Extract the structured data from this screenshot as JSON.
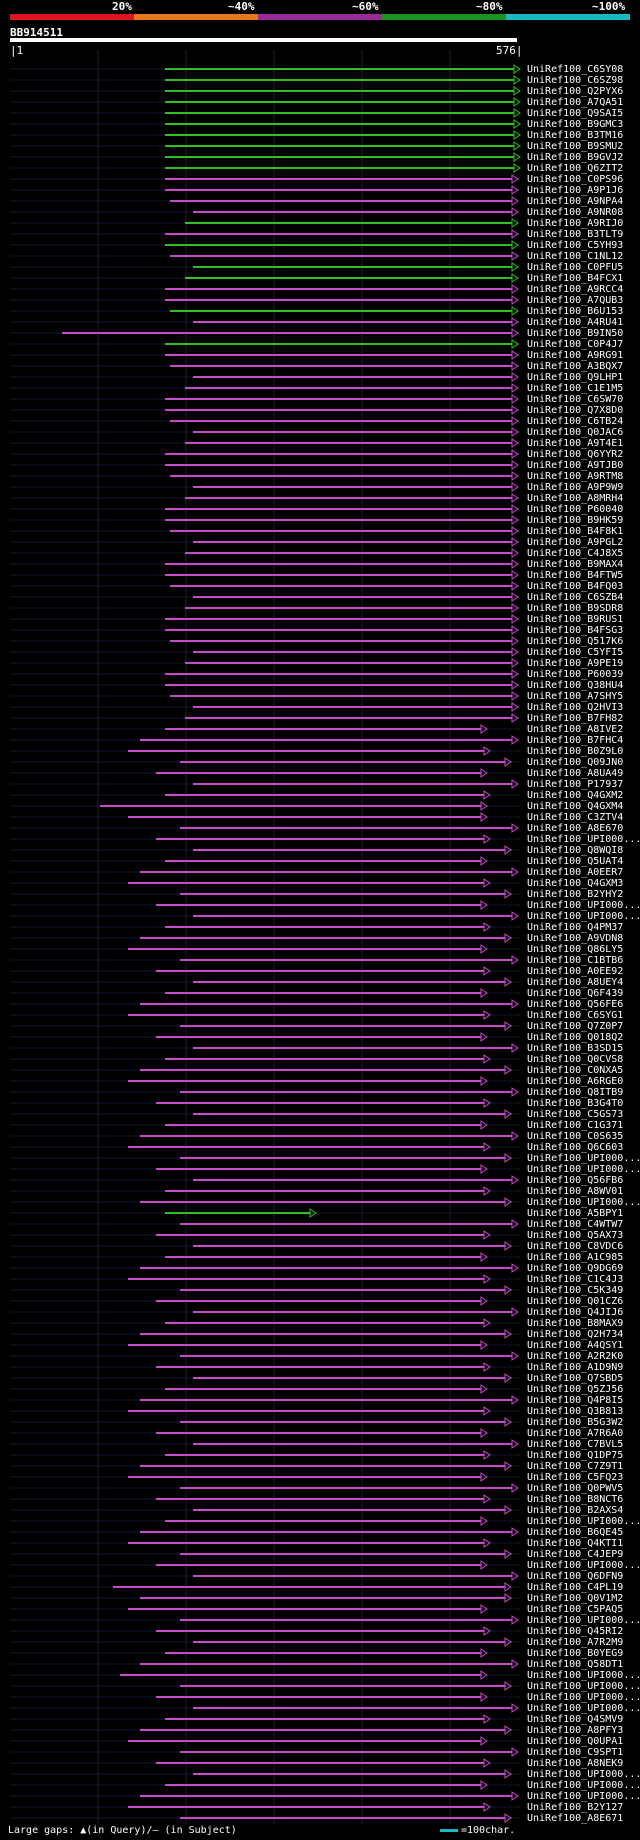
{
  "legend": {
    "labels": [
      "20%",
      "~40%",
      "~60%",
      "~80%",
      "~100%"
    ],
    "colors": [
      "#e0141e",
      "#e87818",
      "#9a2a9a",
      "#19941e",
      "#19b8c3"
    ]
  },
  "query": {
    "name": "BB914511",
    "start": "1",
    "end": "576"
  },
  "hits": [
    {
      "id": "UniRef100_C6SY08",
      "color": "green"
    },
    {
      "id": "UniRef100_C6SZ98",
      "color": "green"
    },
    {
      "id": "UniRef100_Q2PYX6",
      "color": "green"
    },
    {
      "id": "UniRef100_A7QA51",
      "color": "green"
    },
    {
      "id": "UniRef100_Q9SAI5",
      "color": "green"
    },
    {
      "id": "UniRef100_B9GMC3",
      "color": "green"
    },
    {
      "id": "UniRef100_B3TM16",
      "color": "green"
    },
    {
      "id": "UniRef100_B9SMU2",
      "color": "green"
    },
    {
      "id": "UniRef100_B9GVJ2",
      "color": "green"
    },
    {
      "id": "UniRef100_Q6ZIT2",
      "color": "green"
    },
    {
      "id": "UniRef100_C0PS96",
      "color": "magenta"
    },
    {
      "id": "UniRef100_A9P1J6",
      "color": "magenta"
    },
    {
      "id": "UniRef100_A9NPA4",
      "color": "magenta"
    },
    {
      "id": "UniRef100_A9NR08",
      "color": "magenta"
    },
    {
      "id": "UniRef100_A9RIJ0",
      "color": "green"
    },
    {
      "id": "UniRef100_B3TLT9",
      "color": "magenta"
    },
    {
      "id": "UniRef100_C5YH93",
      "color": "green"
    },
    {
      "id": "UniRef100_C1NL12",
      "color": "magenta"
    },
    {
      "id": "UniRef100_C0PFU5",
      "color": "green"
    },
    {
      "id": "UniRef100_B4FCX1",
      "color": "green"
    },
    {
      "id": "UniRef100_A9RCC4",
      "color": "magenta"
    },
    {
      "id": "UniRef100_A7QUB3",
      "color": "magenta"
    },
    {
      "id": "UniRef100_B6U153",
      "color": "green"
    },
    {
      "id": "UniRef100_A4RU41",
      "color": "magenta"
    },
    {
      "id": "UniRef100_B9IN50",
      "color": "magenta"
    },
    {
      "id": "UniRef100_C0P4J7",
      "color": "green"
    },
    {
      "id": "UniRef100_A9RG91",
      "color": "magenta"
    },
    {
      "id": "UniRef100_A3BQX7",
      "color": "magenta"
    },
    {
      "id": "UniRef100_Q9LHP1",
      "color": "magenta"
    },
    {
      "id": "UniRef100_C1E1M5",
      "color": "magenta"
    },
    {
      "id": "UniRef100_C6SW70",
      "color": "magenta"
    },
    {
      "id": "UniRef100_Q7X8D0",
      "color": "magenta"
    },
    {
      "id": "UniRef100_C6TB24",
      "color": "magenta"
    },
    {
      "id": "UniRef100_Q0JAC6",
      "color": "magenta"
    },
    {
      "id": "UniRef100_A9T4E1",
      "color": "magenta"
    },
    {
      "id": "UniRef100_Q6YYR2",
      "color": "magenta"
    },
    {
      "id": "UniRef100_A9TJB0",
      "color": "magenta"
    },
    {
      "id": "UniRef100_A9RTM8",
      "color": "magenta"
    },
    {
      "id": "UniRef100_A9P9W9",
      "color": "magenta"
    },
    {
      "id": "UniRef100_A8MRH4",
      "color": "magenta"
    },
    {
      "id": "UniRef100_P60040",
      "color": "magenta"
    },
    {
      "id": "UniRef100_B9HK59",
      "color": "magenta"
    },
    {
      "id": "UniRef100_B4F8K1",
      "color": "magenta"
    },
    {
      "id": "UniRef100_A9PGL2",
      "color": "magenta"
    },
    {
      "id": "UniRef100_C4J8X5",
      "color": "magenta"
    },
    {
      "id": "UniRef100_B9MAX4",
      "color": "magenta"
    },
    {
      "id": "UniRef100_B4FTW5",
      "color": "magenta"
    },
    {
      "id": "UniRef100_B4FQ03",
      "color": "magenta"
    },
    {
      "id": "UniRef100_C6SZB4",
      "color": "magenta"
    },
    {
      "id": "UniRef100_B9SDR8",
      "color": "magenta"
    },
    {
      "id": "UniRef100_B9RUS1",
      "color": "magenta"
    },
    {
      "id": "UniRef100_B4FSG3",
      "color": "magenta"
    },
    {
      "id": "UniRef100_Q517K6",
      "color": "magenta"
    },
    {
      "id": "UniRef100_C5YFI5",
      "color": "magenta"
    },
    {
      "id": "UniRef100_A9PE19",
      "color": "magenta"
    },
    {
      "id": "UniRef100_P60039",
      "color": "magenta"
    },
    {
      "id": "UniRef100_Q38HU4",
      "color": "magenta"
    },
    {
      "id": "UniRef100_A7SHY5",
      "color": "magenta"
    },
    {
      "id": "UniRef100_Q2HVI3",
      "color": "magenta"
    },
    {
      "id": "UniRef100_B7FH82",
      "color": "magenta"
    },
    {
      "id": "UniRef100_A8IVE2",
      "color": "magenta"
    },
    {
      "id": "UniRef100_B7FHC4",
      "color": "magenta"
    },
    {
      "id": "UniRef100_B0Z9L0",
      "color": "magenta"
    },
    {
      "id": "UniRef100_Q09JN0",
      "color": "magenta"
    },
    {
      "id": "UniRef100_A8UA49",
      "color": "magenta"
    },
    {
      "id": "UniRef100_P17937",
      "color": "magenta"
    },
    {
      "id": "UniRef100_Q4GXM2",
      "color": "magenta"
    },
    {
      "id": "UniRef100_Q4GXM4",
      "color": "magenta"
    },
    {
      "id": "UniRef100_C3ZTV4",
      "color": "magenta"
    },
    {
      "id": "UniRef100_A8E670",
      "color": "magenta"
    },
    {
      "id": "UniRef100_UPI000...",
      "color": "magenta"
    },
    {
      "id": "UniRef100_Q8WQI8",
      "color": "magenta"
    },
    {
      "id": "UniRef100_Q5UAT4",
      "color": "magenta"
    },
    {
      "id": "UniRef100_A0EER7",
      "color": "magenta"
    },
    {
      "id": "UniRef100_Q4GXM3",
      "color": "magenta"
    },
    {
      "id": "UniRef100_B2YHY2",
      "color": "magenta"
    },
    {
      "id": "UniRef100_UPI000...",
      "color": "magenta"
    },
    {
      "id": "UniRef100_UPI000...",
      "color": "magenta"
    },
    {
      "id": "UniRef100_Q4PM37",
      "color": "magenta"
    },
    {
      "id": "UniRef100_A9VDN8",
      "color": "magenta"
    },
    {
      "id": "UniRef100_Q86LY5",
      "color": "magenta"
    },
    {
      "id": "UniRef100_C1BTB6",
      "color": "magenta"
    },
    {
      "id": "UniRef100_A0EE92",
      "color": "magenta"
    },
    {
      "id": "UniRef100_A8UEY4",
      "color": "magenta"
    },
    {
      "id": "UniRef100_Q6F439",
      "color": "magenta"
    },
    {
      "id": "UniRef100_Q56FE6",
      "color": "magenta"
    },
    {
      "id": "UniRef100_C6SYG1",
      "color": "magenta"
    },
    {
      "id": "UniRef100_Q7Z0P7",
      "color": "magenta"
    },
    {
      "id": "UniRef100_Q018Q2",
      "color": "magenta"
    },
    {
      "id": "UniRef100_B3SD15",
      "color": "magenta"
    },
    {
      "id": "UniRef100_Q0CVS8",
      "color": "magenta"
    },
    {
      "id": "UniRef100_C0NXA5",
      "color": "magenta"
    },
    {
      "id": "UniRef100_A6RGE0",
      "color": "magenta"
    },
    {
      "id": "UniRef100_Q8ITB9",
      "color": "magenta"
    },
    {
      "id": "UniRef100_B3G4T0",
      "color": "magenta"
    },
    {
      "id": "UniRef100_C5GS73",
      "color": "magenta"
    },
    {
      "id": "UniRef100_C1G371",
      "color": "magenta"
    },
    {
      "id": "UniRef100_C0S635",
      "color": "magenta"
    },
    {
      "id": "UniRef100_Q6C603",
      "color": "magenta"
    },
    {
      "id": "UniRef100_UPI000...",
      "color": "magenta"
    },
    {
      "id": "UniRef100_UPI000...",
      "color": "magenta"
    },
    {
      "id": "UniRef100_Q56FB6",
      "color": "magenta"
    },
    {
      "id": "UniRef100_A8WV01",
      "color": "magenta"
    },
    {
      "id": "UniRef100_UPI000...",
      "color": "magenta"
    },
    {
      "id": "UniRef100_A5BPY1",
      "color": "green"
    },
    {
      "id": "UniRef100_C4WTW7",
      "color": "magenta"
    },
    {
      "id": "UniRef100_Q5AX73",
      "color": "magenta"
    },
    {
      "id": "UniRef100_C8VDC6",
      "color": "magenta"
    },
    {
      "id": "UniRef100_A1C985",
      "color": "magenta"
    },
    {
      "id": "UniRef100_Q9DG69",
      "color": "magenta"
    },
    {
      "id": "UniRef100_C1C4J3",
      "color": "magenta"
    },
    {
      "id": "UniRef100_C5K349",
      "color": "magenta"
    },
    {
      "id": "UniRef100_Q01CZ6",
      "color": "magenta"
    },
    {
      "id": "UniRef100_Q4JIJ6",
      "color": "magenta"
    },
    {
      "id": "UniRef100_B8MAX9",
      "color": "magenta"
    },
    {
      "id": "UniRef100_Q2H734",
      "color": "magenta"
    },
    {
      "id": "UniRef100_A4QSY1",
      "color": "magenta"
    },
    {
      "id": "UniRef100_A2R2K0",
      "color": "magenta"
    },
    {
      "id": "UniRef100_A1D9N9",
      "color": "magenta"
    },
    {
      "id": "UniRef100_Q7SBD5",
      "color": "magenta"
    },
    {
      "id": "UniRef100_Q5ZJ56",
      "color": "magenta"
    },
    {
      "id": "UniRef100_Q4P8I5",
      "color": "magenta"
    },
    {
      "id": "UniRef100_Q3B813",
      "color": "magenta"
    },
    {
      "id": "UniRef100_B5G3W2",
      "color": "magenta"
    },
    {
      "id": "UniRef100_A7R6A0",
      "color": "magenta"
    },
    {
      "id": "UniRef100_C7BVL5",
      "color": "magenta"
    },
    {
      "id": "UniRef100_Q1DP75",
      "color": "magenta"
    },
    {
      "id": "UniRef100_C7Z9T1",
      "color": "magenta"
    },
    {
      "id": "UniRef100_C5FQ23",
      "color": "magenta"
    },
    {
      "id": "UniRef100_Q0PWV5",
      "color": "magenta"
    },
    {
      "id": "UniRef100_B8NCT6",
      "color": "magenta"
    },
    {
      "id": "UniRef100_B2AXS4",
      "color": "magenta"
    },
    {
      "id": "UniRef100_UPI000...",
      "color": "magenta"
    },
    {
      "id": "UniRef100_B6QE45",
      "color": "magenta"
    },
    {
      "id": "UniRef100_Q4KTI1",
      "color": "magenta"
    },
    {
      "id": "UniRef100_C4JEP9",
      "color": "magenta"
    },
    {
      "id": "UniRef100_UPI000...",
      "color": "magenta"
    },
    {
      "id": "UniRef100_Q6DFN9",
      "color": "magenta"
    },
    {
      "id": "UniRef100_C4PL19",
      "color": "magenta"
    },
    {
      "id": "UniRef100_Q0V1M2",
      "color": "magenta"
    },
    {
      "id": "UniRef100_C5PAQ5",
      "color": "magenta"
    },
    {
      "id": "UniRef100_UPI000...",
      "color": "magenta"
    },
    {
      "id": "UniRef100_Q45RI2",
      "color": "magenta"
    },
    {
      "id": "UniRef100_A7R2M9",
      "color": "magenta"
    },
    {
      "id": "UniRef100_B0YEG9",
      "color": "magenta"
    },
    {
      "id": "UniRef100_Q58DT1",
      "color": "magenta"
    },
    {
      "id": "UniRef100_UPI000...",
      "color": "magenta"
    },
    {
      "id": "UniRef100_UPI000...",
      "color": "magenta"
    },
    {
      "id": "UniRef100_UPI000...",
      "color": "magenta"
    },
    {
      "id": "UniRef100_UPI000...",
      "color": "magenta"
    },
    {
      "id": "UniRef100_Q4SMV9",
      "color": "magenta"
    },
    {
      "id": "UniRef100_A8PFY3",
      "color": "magenta"
    },
    {
      "id": "UniRef100_Q0UPA1",
      "color": "magenta"
    },
    {
      "id": "UniRef100_C9SPT1",
      "color": "magenta"
    },
    {
      "id": "UniRef100_A8NEK9",
      "color": "magenta"
    },
    {
      "id": "UniRef100_UPI000...",
      "color": "magenta"
    },
    {
      "id": "UniRef100_UPI000...",
      "color": "magenta"
    },
    {
      "id": "UniRef100_UPI000...",
      "color": "magenta"
    },
    {
      "id": "UniRef100_B2Y127",
      "color": "magenta"
    },
    {
      "id": "UniRef100_A8E671",
      "color": "magenta"
    }
  ],
  "footer": {
    "gaps_text": "Large gaps: ▲(in Query)/— (in Subject)",
    "scale_text": "=100char."
  }
}
